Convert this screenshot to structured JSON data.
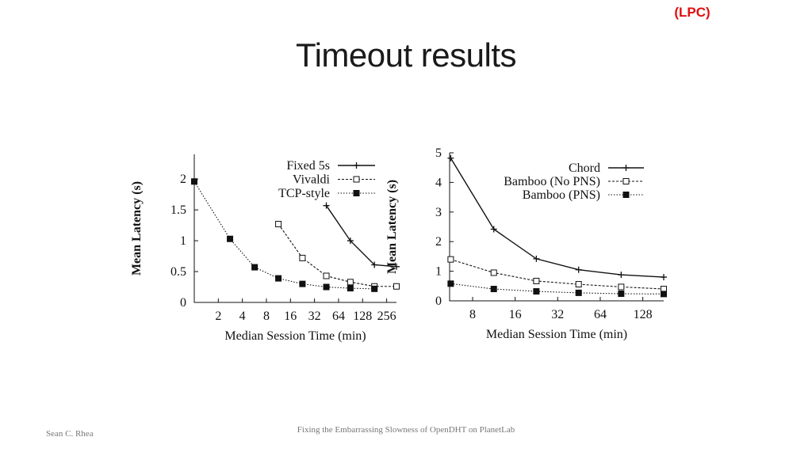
{
  "tag": "(LPC)",
  "title": "Timeout results",
  "footer": {
    "author": "Sean C. Rhea",
    "talk_title": "Fixing the Embarrassing Slowness of OpenDHT on PlanetLab"
  },
  "chart_data": [
    {
      "type": "line",
      "xlabel": "Median Session Time (min)",
      "ylabel": "Mean Latency (s)",
      "x_scale": "log2",
      "xlim": [
        1,
        340
      ],
      "ylim": [
        0,
        2.4
      ],
      "x_ticks": [
        2,
        4,
        8,
        16,
        32,
        64,
        128,
        256
      ],
      "y_ticks": [
        0,
        0.5,
        1,
        1.5,
        2
      ],
      "y_tick_labels": [
        "0",
        "0.5",
        "1",
        "1.5",
        "2"
      ],
      "legend_position": "top-right",
      "series": [
        {
          "name": "Fixed 5s",
          "marker": "plus",
          "dash": "solid",
          "color": "#111111",
          "x": [
            45,
            90,
            180,
            340
          ],
          "y": [
            1.57,
            1.0,
            0.61,
            0.58
          ]
        },
        {
          "name": "Vivaldi",
          "marker": "open-square",
          "dash": "dashed",
          "color": "#111111",
          "x": [
            11.3,
            22.6,
            45,
            90,
            180,
            340
          ],
          "y": [
            1.27,
            0.72,
            0.43,
            0.33,
            0.26,
            0.26
          ]
        },
        {
          "name": "TCP-style",
          "marker": "filled-square",
          "dash": "dotted",
          "color": "#111111",
          "x": [
            1,
            2.8,
            5.7,
            11.3,
            22.6,
            45,
            90,
            180
          ],
          "y": [
            1.96,
            1.03,
            0.57,
            0.39,
            0.3,
            0.25,
            0.23,
            0.22
          ]
        }
      ]
    },
    {
      "type": "line",
      "xlabel": "Median Session Time (min)",
      "ylabel": "Mean Latency (s)",
      "x_scale": "log2",
      "xlim": [
        5.5,
        180
      ],
      "ylim": [
        0,
        5
      ],
      "x_ticks": [
        8,
        16,
        32,
        64,
        128
      ],
      "y_ticks": [
        0,
        1,
        2,
        3,
        4,
        5
      ],
      "y_tick_labels": [
        "0",
        "1",
        "2",
        "3",
        "4",
        "5"
      ],
      "legend_position": "top-right",
      "series": [
        {
          "name": "Chord",
          "marker": "plus",
          "dash": "solid",
          "color": "#111111",
          "x": [
            5.6,
            11.3,
            22.6,
            45,
            90,
            180
          ],
          "y": [
            4.82,
            2.42,
            1.42,
            1.05,
            0.88,
            0.8
          ]
        },
        {
          "name": "Bamboo (No PNS)",
          "marker": "open-square",
          "dash": "dashed",
          "color": "#111111",
          "x": [
            5.6,
            11.3,
            22.6,
            45,
            90,
            180
          ],
          "y": [
            1.4,
            0.95,
            0.67,
            0.56,
            0.47,
            0.4
          ]
        },
        {
          "name": "Bamboo (PNS)",
          "marker": "filled-square",
          "dash": "dotted",
          "color": "#111111",
          "x": [
            5.6,
            11.3,
            22.6,
            45,
            90,
            180
          ],
          "y": [
            0.58,
            0.4,
            0.32,
            0.27,
            0.24,
            0.23
          ]
        }
      ]
    }
  ]
}
